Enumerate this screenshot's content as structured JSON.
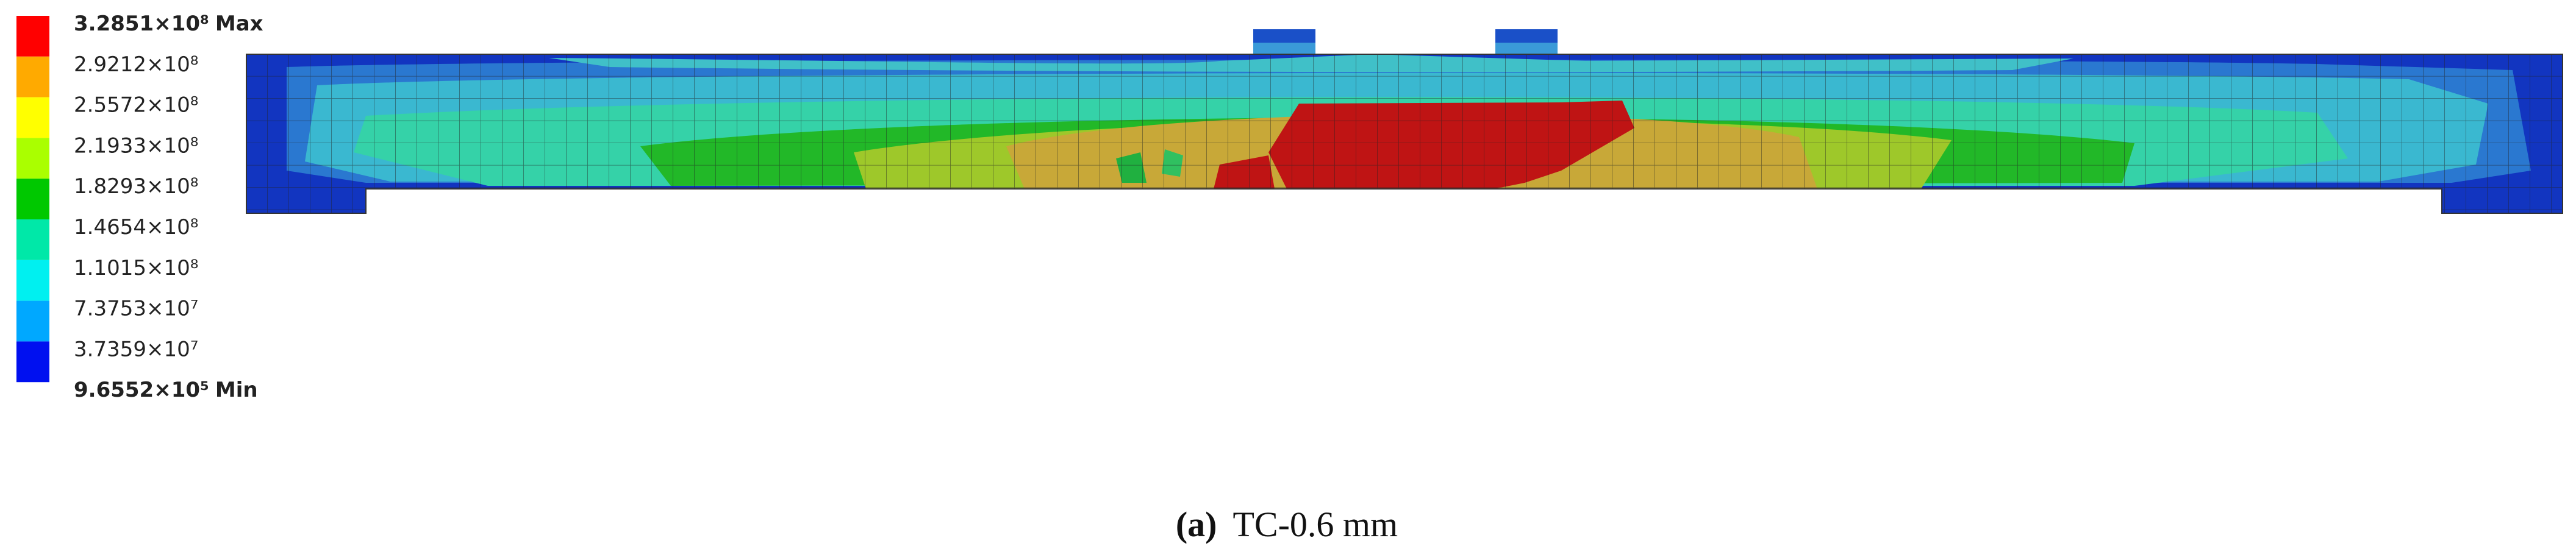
{
  "legend": {
    "labels": [
      "3.2851×10⁸",
      "2.9212×10⁸",
      "2.5572×10⁸",
      "2.1933×10⁸",
      "1.8293×10⁸",
      "1.4654×10⁸",
      "1.1015×10⁸",
      "7.3753×10⁷",
      "3.7359×10⁷",
      "9.6552×10⁵"
    ],
    "max": "Max",
    "min": "Min"
  },
  "caption": {
    "label": "(a)",
    "text": "TC-0.6 mm"
  }
}
